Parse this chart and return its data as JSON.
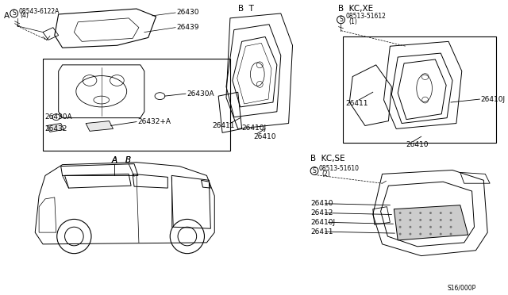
{
  "bg_color": "#ffffff",
  "line_color": "#000000",
  "diagram_number": "S16/000P",
  "font_size_tiny": 5.5,
  "font_size_small": 6.5,
  "font_size_med": 7.5,
  "sections": {
    "A": "A",
    "BT": "B  T",
    "BKC_XE": "B  KC,XE",
    "BKC_SE": "B  KC,SE"
  },
  "parts": {
    "p26430": "26430",
    "p26439": "26439",
    "p26430A": "26430A",
    "p26432": "26432",
    "p26432A": "26432+A",
    "p26411": "26411",
    "p26410J": "26410J",
    "p26410": "26410",
    "p26412": "26412",
    "p08543_6122A": "08543-6122A",
    "p4": "(4)",
    "p08513_51612": "08513-51612",
    "p1": "(1)",
    "p08513_51610": "08513-51610",
    "p2": "(2)"
  }
}
